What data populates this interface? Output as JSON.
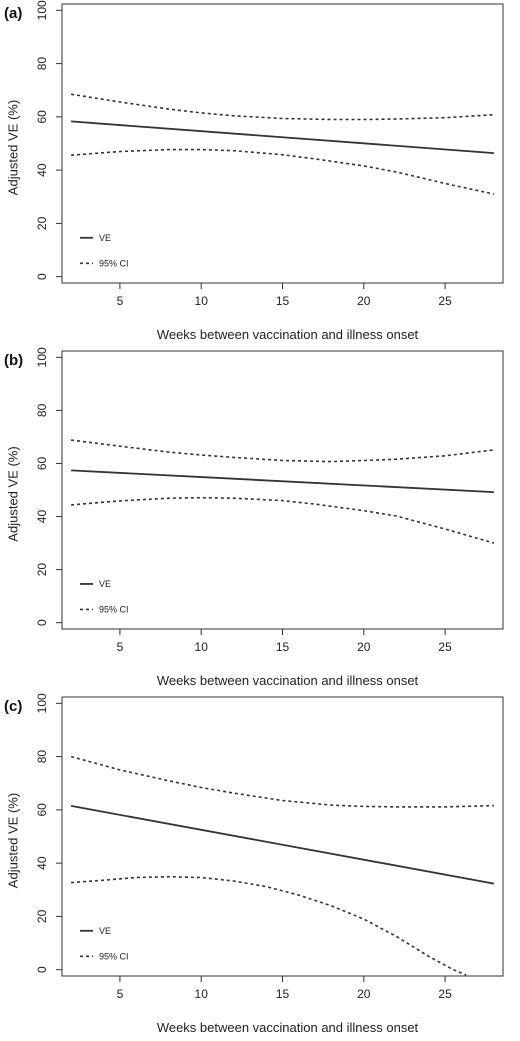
{
  "chart_data": [
    {
      "type": "line",
      "panel_label": "(a)",
      "xlabel": "Weeks between vaccination and illness onset",
      "ylabel": "Adjusted VE (%)",
      "xlim": [
        1.5,
        28.5
      ],
      "ylim": [
        -2,
        102
      ],
      "xticks": [
        5,
        10,
        15,
        20,
        25
      ],
      "yticks": [
        0,
        20,
        40,
        60,
        80,
        100
      ],
      "legend": {
        "position": "bottom-left",
        "entries": [
          "VE",
          "95% CI"
        ]
      },
      "series": [
        {
          "name": "VE",
          "style": "solid",
          "x": [
            2,
            28
          ],
          "y": [
            58.3,
            46.4
          ]
        },
        {
          "name": "95% CI",
          "style": "dashed",
          "x": [
            2,
            5,
            8,
            10,
            12,
            15,
            18,
            20,
            22,
            25,
            28
          ],
          "y": [
            68.5,
            65.6,
            62.9,
            61.5,
            60.4,
            59.4,
            59.0,
            59.0,
            59.2,
            59.7,
            60.8
          ]
        },
        {
          "name": "95% CI",
          "style": "dashed",
          "x": [
            2,
            5,
            8,
            10,
            12,
            15,
            17,
            20,
            22,
            25,
            28
          ],
          "y": [
            45.6,
            47.0,
            47.7,
            47.7,
            47.3,
            45.8,
            44.2,
            41.6,
            39.3,
            35.0,
            31.0
          ]
        }
      ]
    },
    {
      "type": "line",
      "panel_label": "(b)",
      "xlabel": "Weeks between vaccination and illness onset",
      "ylabel": "Adjusted VE (%)",
      "xlim": [
        1.5,
        28.5
      ],
      "ylim": [
        -2,
        102
      ],
      "xticks": [
        5,
        10,
        15,
        20,
        25
      ],
      "yticks": [
        0,
        20,
        40,
        60,
        80,
        100
      ],
      "legend": {
        "position": "bottom-left",
        "entries": [
          "VE",
          "95% CI"
        ]
      },
      "series": [
        {
          "name": "VE",
          "style": "solid",
          "x": [
            2,
            28
          ],
          "y": [
            57.4,
            49.2
          ]
        },
        {
          "name": "95% CI",
          "style": "dashed",
          "x": [
            2,
            5,
            8,
            10,
            12,
            15,
            18,
            20,
            22,
            25,
            28
          ],
          "y": [
            68.8,
            66.5,
            64.3,
            63.2,
            62.3,
            61.1,
            60.7,
            61.1,
            61.6,
            62.9,
            65.1
          ]
        },
        {
          "name": "95% CI",
          "style": "dashed",
          "x": [
            2,
            5,
            8,
            10,
            12,
            15,
            17,
            20,
            22,
            25,
            28
          ],
          "y": [
            44.4,
            45.9,
            46.9,
            47.1,
            46.9,
            46.0,
            44.7,
            42.2,
            40.2,
            35.3,
            30.0
          ]
        }
      ]
    },
    {
      "type": "line",
      "panel_label": "(c)",
      "xlabel": "Weeks between vaccination and illness onset",
      "ylabel": "Adjusted VE (%)",
      "xlim": [
        1.5,
        28.5
      ],
      "ylim": [
        -2,
        102
      ],
      "xticks": [
        5,
        10,
        15,
        20,
        25
      ],
      "yticks": [
        0,
        20,
        40,
        60,
        80,
        100
      ],
      "legend": {
        "position": "bottom-left",
        "entries": [
          "VE",
          "95% CI"
        ]
      },
      "series": [
        {
          "name": "VE",
          "style": "solid",
          "x": [
            2,
            28
          ],
          "y": [
            61.5,
            32.3
          ]
        },
        {
          "name": "95% CI",
          "style": "dashed",
          "x": [
            2,
            5,
            8,
            10,
            12,
            15,
            18,
            20,
            22,
            25,
            28
          ],
          "y": [
            80.0,
            75.0,
            70.9,
            68.4,
            66.3,
            63.5,
            61.8,
            61.3,
            61.1,
            61.1,
            61.6
          ]
        },
        {
          "name": "95% CI",
          "style": "dashed",
          "x": [
            2,
            4,
            6,
            8,
            10,
            12,
            14,
            16,
            18,
            20,
            22,
            24,
            25.5,
            26.3
          ],
          "y": [
            32.7,
            33.6,
            34.6,
            34.9,
            34.6,
            33.3,
            31.2,
            28.0,
            24.0,
            19.0,
            12.5,
            5.0,
            0.0,
            -2.0
          ]
        }
      ]
    }
  ]
}
